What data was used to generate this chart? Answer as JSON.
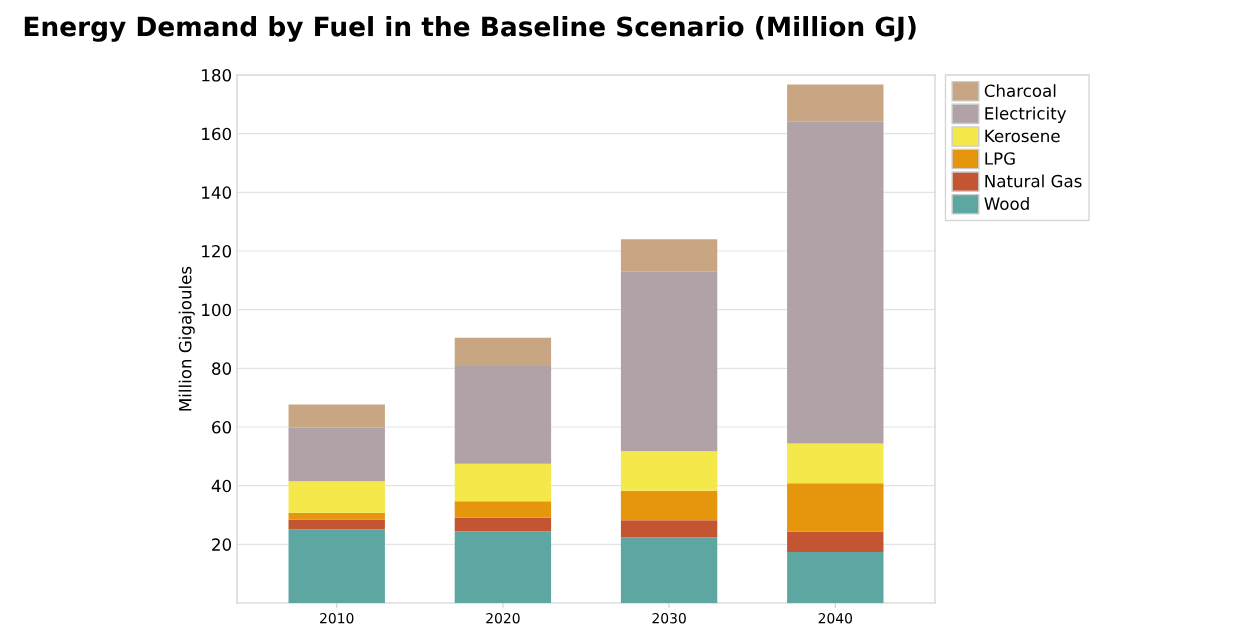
{
  "chart_data": {
    "type": "bar",
    "title": "Energy Demand by Fuel in the Baseline Scenario (Million GJ)",
    "ylabel": "Million Gigajoules",
    "categories": [
      "2010",
      "2020",
      "2030",
      "2040"
    ],
    "stacked": true,
    "series": [
      {
        "name": "Wood",
        "color": "#5ea6a2",
        "values": [
          25.1,
          24.5,
          22.4,
          17.4
        ]
      },
      {
        "name": "Natural Gas",
        "color": "#c45533",
        "values": [
          3.4,
          4.6,
          5.8,
          6.9
        ]
      },
      {
        "name": "LPG",
        "color": "#e6960c",
        "values": [
          2.3,
          5.6,
          10.1,
          16.5
        ]
      },
      {
        "name": "Kerosene",
        "color": "#f5e84a",
        "values": [
          10.7,
          12.8,
          13.4,
          13.6
        ]
      },
      {
        "name": "Electricity",
        "color": "#b0a2a6",
        "values": [
          18.3,
          33.3,
          61.2,
          109.7
        ]
      },
      {
        "name": "Charcoal",
        "color": "#c8a683",
        "values": [
          7.9,
          9.6,
          11.1,
          12.7
        ]
      }
    ],
    "ylim": [
      0,
      180
    ],
    "yticks": [
      20,
      40,
      60,
      80,
      100,
      120,
      140,
      160,
      180
    ],
    "grid": "y",
    "legend": "top right"
  }
}
